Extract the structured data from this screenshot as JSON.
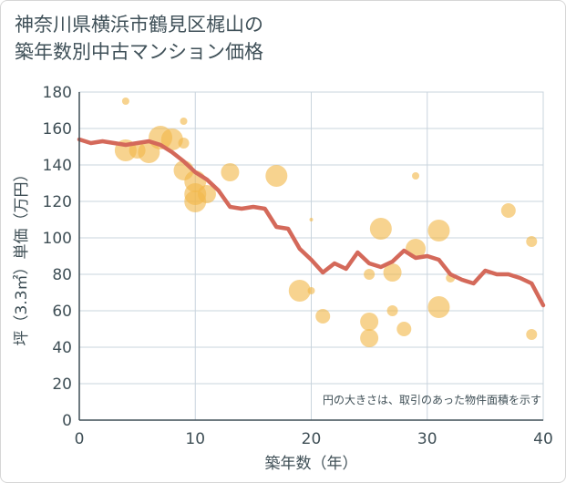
{
  "title_lines": [
    "神奈川県横浜市鶴見区梶山の",
    "築年数別中古マンション価格"
  ],
  "colors": {
    "line": "#d4695a",
    "bubble": "#f2b84b",
    "grid": "#c9d4dd",
    "plot_bg": "#ffffff",
    "text": "#3f4f56"
  },
  "chart_data": {
    "type": "scatter",
    "title": "神奈川県横浜市鶴見区梶山の築年数別中古マンション価格",
    "xlabel": "築年数（年）",
    "ylabel": "坪（3.3㎡）単価（万円）",
    "xlim": [
      0,
      40
    ],
    "ylim": [
      0,
      180
    ],
    "xticks": [
      0,
      10,
      20,
      30,
      40
    ],
    "yticks": [
      0,
      20,
      40,
      60,
      80,
      100,
      120,
      140,
      160,
      180
    ],
    "grid": true,
    "note": "円の大きさは、取引のあった物件面積を示す",
    "line_series": {
      "x": [
        0,
        1,
        2,
        3,
        4,
        5,
        6,
        7,
        8,
        9,
        10,
        11,
        12,
        13,
        14,
        15,
        16,
        17,
        18,
        19,
        20,
        21,
        22,
        23,
        24,
        25,
        26,
        27,
        28,
        29,
        30,
        31,
        32,
        33,
        34,
        35,
        36,
        37,
        38,
        39,
        40
      ],
      "y": [
        154,
        152,
        153,
        152,
        151,
        152,
        153,
        151,
        147,
        142,
        136,
        132,
        126,
        117,
        116,
        117,
        116,
        106,
        105,
        94,
        88,
        81,
        86,
        83,
        92,
        86,
        84,
        87,
        93,
        89,
        90,
        88,
        80,
        77,
        75,
        82,
        80,
        80,
        78,
        75,
        63
      ]
    },
    "bubbles": [
      {
        "x": 4,
        "y": 175,
        "size": 4
      },
      {
        "x": 9,
        "y": 164,
        "size": 4
      },
      {
        "x": 4,
        "y": 148,
        "size": 12
      },
      {
        "x": 5,
        "y": 148,
        "size": 9
      },
      {
        "x": 6,
        "y": 147,
        "size": 12
      },
      {
        "x": 7,
        "y": 155,
        "size": 13
      },
      {
        "x": 8,
        "y": 154,
        "size": 12
      },
      {
        "x": 9,
        "y": 152,
        "size": 6
      },
      {
        "x": 9,
        "y": 137,
        "size": 11
      },
      {
        "x": 10,
        "y": 131,
        "size": 12
      },
      {
        "x": 10,
        "y": 124,
        "size": 12
      },
      {
        "x": 10,
        "y": 120,
        "size": 12
      },
      {
        "x": 11,
        "y": 124,
        "size": 10
      },
      {
        "x": 13,
        "y": 136,
        "size": 10
      },
      {
        "x": 17,
        "y": 134,
        "size": 12
      },
      {
        "x": 19,
        "y": 71,
        "size": 12
      },
      {
        "x": 20,
        "y": 71,
        "size": 4
      },
      {
        "x": 20,
        "y": 110,
        "size": 2
      },
      {
        "x": 21,
        "y": 57,
        "size": 8
      },
      {
        "x": 25,
        "y": 54,
        "size": 10
      },
      {
        "x": 25,
        "y": 45,
        "size": 10
      },
      {
        "x": 25,
        "y": 80,
        "size": 6
      },
      {
        "x": 26,
        "y": 105,
        "size": 12
      },
      {
        "x": 27,
        "y": 81,
        "size": 10
      },
      {
        "x": 27,
        "y": 60,
        "size": 6
      },
      {
        "x": 28,
        "y": 50,
        "size": 8
      },
      {
        "x": 29,
        "y": 94,
        "size": 11
      },
      {
        "x": 29,
        "y": 134,
        "size": 4
      },
      {
        "x": 31,
        "y": 104,
        "size": 12
      },
      {
        "x": 31,
        "y": 62,
        "size": 12
      },
      {
        "x": 32,
        "y": 78,
        "size": 5
      },
      {
        "x": 37,
        "y": 115,
        "size": 8
      },
      {
        "x": 39,
        "y": 98,
        "size": 6
      },
      {
        "x": 39,
        "y": 47,
        "size": 6
      }
    ]
  }
}
